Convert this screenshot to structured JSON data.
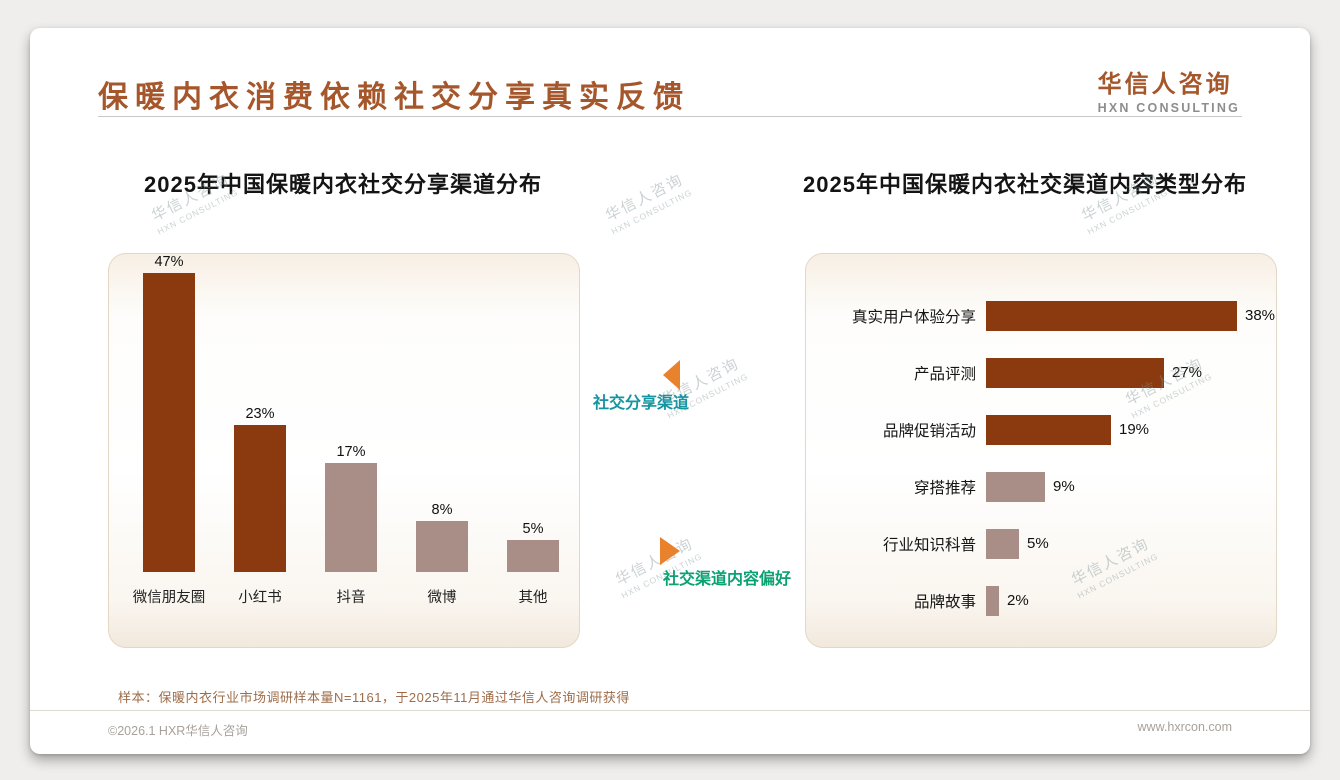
{
  "header": {
    "title": "保暖内衣消费依赖社交分享真实反馈",
    "logo_cn": "华信人咨询",
    "logo_en": "HXN CONSULTING"
  },
  "center": {
    "top_label": "社交分享渠道",
    "bottom_label": "社交渠道内容偏好"
  },
  "watermark": {
    "line1": "华信人咨询",
    "line2": "HXN CONSULTING"
  },
  "footnote": "样本：保暖内衣行业市场调研样本量N=1161，于2025年11月通过华信人咨询调研获得",
  "footer": {
    "left": "©2026.1 HXR华信人咨询",
    "right": "www.hxrcon.com"
  },
  "colors": {
    "accent_title": "#A5572B",
    "dark_bar": "#8A3A0E",
    "light_bar": "#A98E88",
    "teal_label": "#1694A0",
    "green_label": "#0BA173",
    "arrow_orange": "#E8822D"
  },
  "chart_data": [
    {
      "type": "bar",
      "orientation": "vertical",
      "title": "2025年中国保暖内衣社交分享渠道分布",
      "categories": [
        "微信朋友圈",
        "小红书",
        "抖音",
        "微博",
        "其他"
      ],
      "values": [
        47,
        23,
        17,
        8,
        5
      ],
      "unit": "%",
      "bar_colors": [
        "#8A3A0E",
        "#8A3A0E",
        "#A98E88",
        "#A98E88",
        "#A98E88"
      ],
      "ylim": [
        0,
        50
      ],
      "grid": false,
      "legend": false
    },
    {
      "type": "bar",
      "orientation": "horizontal",
      "title": "2025年中国保暖内衣社交渠道内容类型分布",
      "categories": [
        "真实用户体验分享",
        "产品评测",
        "品牌促销活动",
        "穿搭推荐",
        "行业知识科普",
        "品牌故事"
      ],
      "values": [
        38,
        27,
        19,
        9,
        5,
        2
      ],
      "unit": "%",
      "bar_colors": [
        "#8A3A0E",
        "#8A3A0E",
        "#8A3A0E",
        "#A98E88",
        "#A98E88",
        "#A98E88"
      ],
      "xlim": [
        0,
        40
      ],
      "grid": false,
      "legend": false
    }
  ]
}
